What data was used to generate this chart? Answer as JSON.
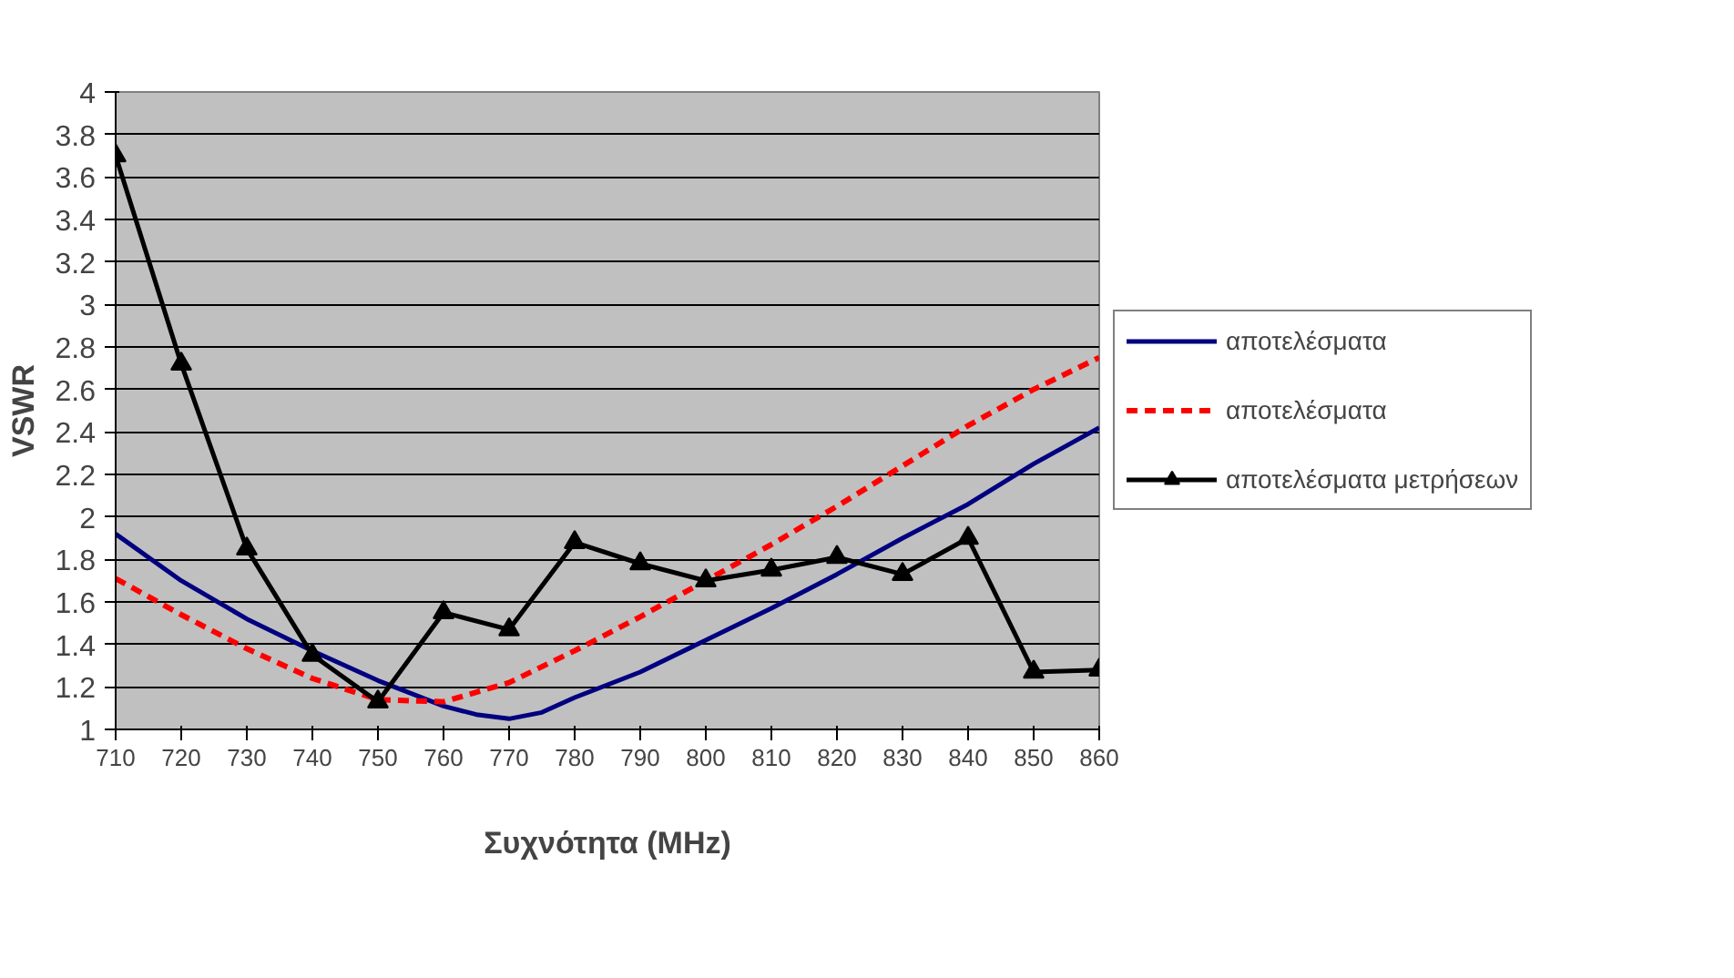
{
  "chart_data": {
    "type": "line",
    "xlabel": "Συχνότητα (MHz)",
    "ylabel": "VSWR",
    "xlim": [
      710,
      860
    ],
    "xticks": [
      710,
      720,
      730,
      740,
      750,
      760,
      770,
      780,
      790,
      800,
      810,
      820,
      830,
      840,
      850,
      860
    ],
    "ylim": [
      1,
      4
    ],
    "yticks": [
      1,
      1.2,
      1.4,
      1.6,
      1.8,
      2,
      2.2,
      2.4,
      2.6,
      2.8,
      3,
      3.2,
      3.4,
      3.6,
      3.8,
      4
    ],
    "grid": "y",
    "legend": "right",
    "series": [
      {
        "name": "αποτελέσματα",
        "color": "#000080",
        "line_style": "solid",
        "marker": "none",
        "x": [
          710,
          720,
          730,
          740,
          750,
          760,
          765,
          770,
          775,
          780,
          790,
          800,
          810,
          820,
          830,
          840,
          850,
          860
        ],
        "values": [
          1.92,
          1.7,
          1.52,
          1.37,
          1.23,
          1.11,
          1.07,
          1.05,
          1.08,
          1.15,
          1.27,
          1.42,
          1.57,
          1.73,
          1.9,
          2.06,
          2.25,
          2.42
        ]
      },
      {
        "name": "αποτελέσματα",
        "color": "#ff0000",
        "line_style": "dashed",
        "marker": "none",
        "x": [
          710,
          720,
          730,
          740,
          750,
          760,
          770,
          780,
          790,
          800,
          810,
          820,
          830,
          840,
          850,
          860
        ],
        "values": [
          1.71,
          1.54,
          1.38,
          1.24,
          1.14,
          1.13,
          1.22,
          1.37,
          1.53,
          1.7,
          1.87,
          2.05,
          2.24,
          2.43,
          2.6,
          2.75
        ]
      },
      {
        "name": "αποτελέσματα μετρήσεων",
        "color": "#000000",
        "line_style": "solid",
        "marker": "triangle",
        "x": [
          710,
          720,
          730,
          740,
          750,
          760,
          770,
          780,
          790,
          800,
          810,
          820,
          830,
          840,
          850,
          860
        ],
        "values": [
          3.7,
          2.72,
          1.85,
          1.35,
          1.13,
          1.55,
          1.47,
          1.88,
          1.78,
          1.7,
          1.75,
          1.81,
          1.73,
          1.9,
          1.27,
          1.28
        ]
      }
    ]
  }
}
